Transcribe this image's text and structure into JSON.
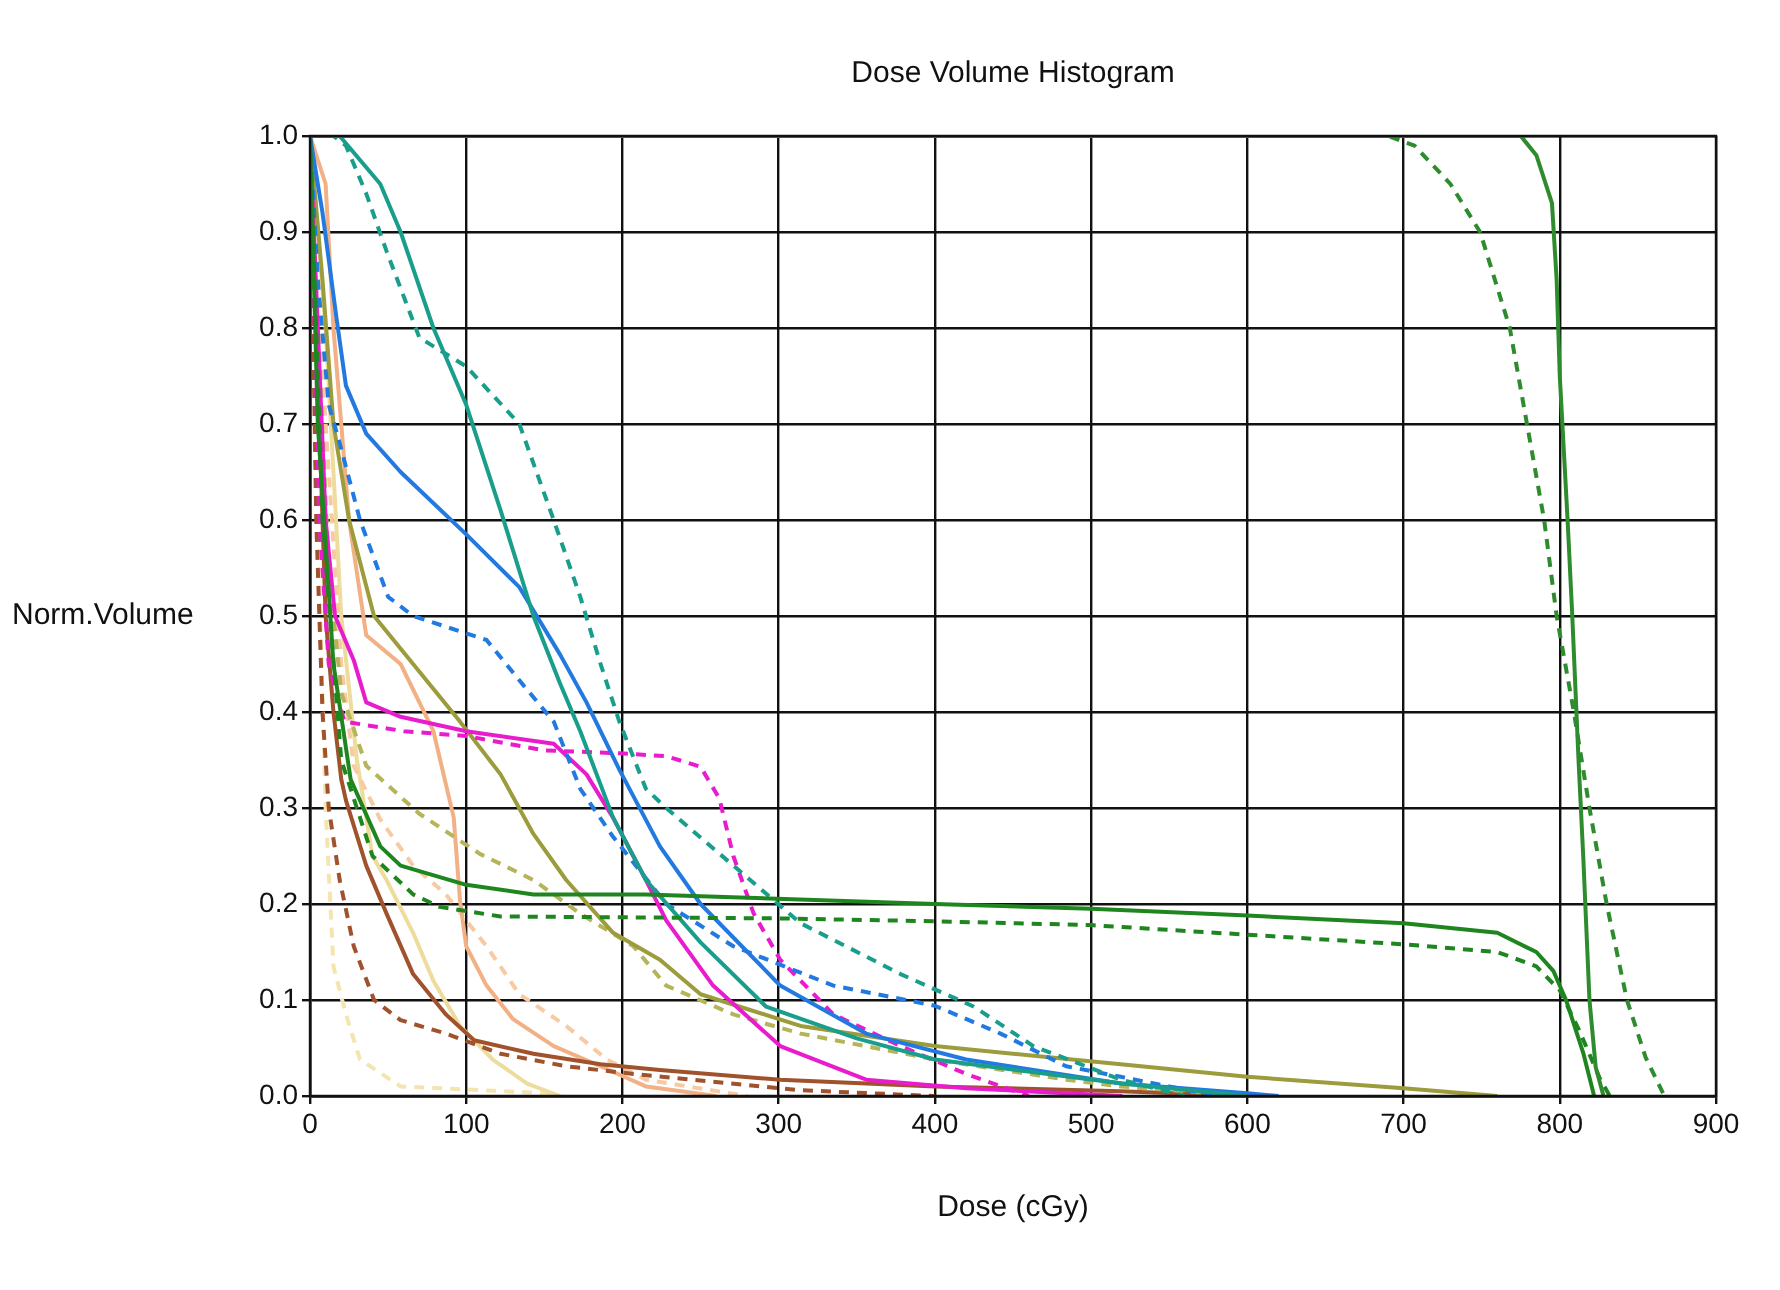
{
  "chart_data": {
    "type": "line",
    "title": "Dose Volume Histogram",
    "xlabel": "Dose (cGy)",
    "ylabel": "Norm.Volume",
    "xlim": [
      0,
      900
    ],
    "ylim": [
      0,
      1
    ],
    "xticks": [
      0,
      100,
      200,
      300,
      400,
      500,
      600,
      700,
      800,
      900
    ],
    "yticks": [
      {
        "value": 0,
        "label": "0.0"
      },
      0.1,
      0.2,
      0.3,
      0.4,
      0.5,
      0.6,
      0.7,
      0.8,
      0.9,
      {
        "value": 1,
        "label": "1.0"
      }
    ],
    "grid": true,
    "legend": false,
    "marker": "none",
    "series": [
      {
        "color": "#2e8b2e",
        "line_style": "solid",
        "x": [
          0,
          760,
          775,
          785,
          795,
          798,
          800,
          805,
          808,
          812,
          815,
          819,
          823,
          828
        ],
        "values": [
          1,
          1,
          1,
          0.98,
          0.93,
          0.85,
          0.75,
          0.6,
          0.5,
          0.35,
          0.25,
          0.1,
          0.03,
          0
        ]
      },
      {
        "color": "#2e8b2e",
        "line_style": "dashed",
        "x": [
          0,
          690,
          707,
          730,
          749,
          768,
          779,
          790,
          798,
          809,
          819,
          830,
          843,
          855,
          867
        ],
        "values": [
          1,
          1,
          0.99,
          0.95,
          0.9,
          0.8,
          0.7,
          0.6,
          0.5,
          0.4,
          0.3,
          0.2,
          0.1,
          0.04,
          0
        ]
      },
      {
        "color": "#1f861f",
        "line_style": "solid",
        "x": [
          0,
          5,
          15,
          26,
          45,
          58,
          100,
          143,
          215,
          400,
          500,
          600,
          700,
          760,
          785,
          796,
          804,
          815,
          822
        ],
        "values": [
          1,
          0.7,
          0.45,
          0.33,
          0.26,
          0.24,
          0.22,
          0.21,
          0.21,
          0.2,
          0.195,
          0.188,
          0.18,
          0.17,
          0.15,
          0.13,
          0.1,
          0.045,
          0
        ]
      },
      {
        "color": "#1f861f",
        "line_style": "dashed",
        "x": [
          0,
          8,
          20,
          40,
          66,
          83,
          122,
          300,
          400,
          500,
          600,
          700,
          760,
          785,
          800,
          812,
          826,
          832
        ],
        "values": [
          1,
          0.6,
          0.35,
          0.25,
          0.21,
          0.197,
          0.187,
          0.185,
          0.182,
          0.178,
          0.168,
          0.158,
          0.15,
          0.135,
          0.11,
          0.07,
          0.017,
          0
        ]
      },
      {
        "color": "#1a9e8c",
        "line_style": "solid",
        "x": [
          0,
          19,
          45,
          58,
          79,
          100,
          122,
          143,
          160,
          173,
          194,
          215,
          250,
          292,
          350,
          400,
          520,
          600
        ],
        "values": [
          1,
          1,
          0.95,
          0.9,
          0.8,
          0.72,
          0.61,
          0.5,
          0.43,
          0.38,
          0.29,
          0.225,
          0.16,
          0.093,
          0.06,
          0.038,
          0.013,
          0
        ]
      },
      {
        "color": "#1a9e8c",
        "line_style": "dashed",
        "x": [
          0,
          15,
          23,
          36,
          49,
          70,
          100,
          134,
          156,
          173,
          186,
          198,
          215,
          228,
          271,
          314,
          378,
          425,
          463,
          519,
          560
        ],
        "values": [
          1,
          1,
          0.99,
          0.94,
          0.88,
          0.79,
          0.76,
          0.7,
          0.6,
          0.52,
          0.45,
          0.39,
          0.32,
          0.3,
          0.24,
          0.18,
          0.127,
          0.093,
          0.052,
          0.017,
          0
        ]
      },
      {
        "color": "#2279e0",
        "line_style": "solid",
        "x": [
          0,
          8,
          17,
          23,
          36,
          58,
          100,
          134,
          160,
          177,
          198,
          224,
          250,
          301,
          356,
          420,
          519,
          600,
          620
        ],
        "values": [
          1,
          0.92,
          0.81,
          0.74,
          0.69,
          0.65,
          0.585,
          0.53,
          0.46,
          0.41,
          0.34,
          0.26,
          0.2,
          0.115,
          0.065,
          0.038,
          0.013,
          0.003,
          0
        ]
      },
      {
        "color": "#2279e0",
        "line_style": "dashed",
        "x": [
          0,
          5,
          12,
          19,
          32,
          50,
          66,
          113,
          134,
          156,
          173,
          194,
          228,
          271,
          335,
          400,
          442,
          484,
          519,
          580
        ],
        "values": [
          1,
          0.85,
          0.72,
          0.68,
          0.6,
          0.52,
          0.5,
          0.475,
          0.433,
          0.39,
          0.32,
          0.27,
          0.2,
          0.156,
          0.115,
          0.094,
          0.065,
          0.031,
          0.02,
          0
        ]
      },
      {
        "color": "#e81ccc",
        "line_style": "solid",
        "x": [
          0,
          5,
          10,
          16,
          28,
          36,
          58,
          100,
          156,
          177,
          194,
          215,
          228,
          258,
          301,
          356,
          420,
          520
        ],
        "values": [
          1,
          0.8,
          0.6,
          0.5,
          0.454,
          0.41,
          0.395,
          0.38,
          0.367,
          0.335,
          0.29,
          0.225,
          0.183,
          0.115,
          0.052,
          0.017,
          0.008,
          0
        ]
      },
      {
        "color": "#e81ccc",
        "line_style": "dashed",
        "x": [
          0,
          6,
          12,
          22,
          60,
          100,
          150,
          198,
          228,
          250,
          262,
          271,
          284,
          301,
          335,
          378,
          420,
          460
        ],
        "values": [
          1,
          0.6,
          0.45,
          0.39,
          0.38,
          0.375,
          0.36,
          0.357,
          0.354,
          0.343,
          0.31,
          0.25,
          0.19,
          0.142,
          0.085,
          0.052,
          0.023,
          0
        ]
      },
      {
        "color": "#9c9c3c",
        "line_style": "solid",
        "x": [
          0,
          8,
          15,
          25,
          41,
          66,
          96,
          122,
          143,
          164,
          194,
          224,
          250,
          314,
          400,
          519,
          600,
          700,
          760
        ],
        "values": [
          1,
          0.85,
          0.7,
          0.6,
          0.5,
          0.45,
          0.39,
          0.335,
          0.273,
          0.225,
          0.17,
          0.142,
          0.106,
          0.073,
          0.052,
          0.033,
          0.02,
          0.008,
          0
        ]
      },
      {
        "color": "#b4b45a",
        "line_style": "dashed",
        "x": [
          0,
          5,
          12,
          20,
          36,
          70,
          109,
          143,
          173,
          207,
          228,
          271,
          314,
          400,
          484,
          519,
          600
        ],
        "values": [
          1,
          0.8,
          0.55,
          0.42,
          0.344,
          0.294,
          0.252,
          0.225,
          0.19,
          0.156,
          0.115,
          0.085,
          0.065,
          0.038,
          0.017,
          0.01,
          0
        ]
      },
      {
        "color": "#a0522d",
        "line_style": "solid",
        "x": [
          0,
          5,
          10,
          15,
          20,
          23,
          36,
          49,
          66,
          87,
          105,
          143,
          186,
          224,
          301,
          400,
          519,
          600
        ],
        "values": [
          1,
          0.75,
          0.5,
          0.4,
          0.33,
          0.308,
          0.24,
          0.19,
          0.127,
          0.085,
          0.058,
          0.044,
          0.033,
          0.027,
          0.017,
          0.01,
          0.005,
          0
        ]
      },
      {
        "color": "#a0522d",
        "line_style": "dashed",
        "x": [
          0,
          4,
          8,
          12,
          19,
          28,
          41,
          58,
          87,
          122,
          164,
          207,
          314,
          400
        ],
        "values": [
          1,
          0.6,
          0.4,
          0.3,
          0.225,
          0.156,
          0.1,
          0.079,
          0.065,
          0.044,
          0.031,
          0.023,
          0.006,
          0
        ]
      },
      {
        "color": "#f2b084",
        "line_style": "solid",
        "x": [
          0,
          10,
          15,
          25,
          36,
          58,
          79,
          92,
          96,
          100,
          113,
          130,
          156,
          186,
          215,
          260
        ],
        "values": [
          1,
          0.95,
          0.8,
          0.6,
          0.48,
          0.45,
          0.38,
          0.29,
          0.204,
          0.156,
          0.115,
          0.08,
          0.052,
          0.031,
          0.01,
          0
        ]
      },
      {
        "color": "#f8caa4",
        "line_style": "dashed",
        "x": [
          0,
          10,
          20,
          28,
          45,
          66,
          87,
          113,
          134,
          164,
          190,
          215,
          280
        ],
        "values": [
          1,
          0.7,
          0.45,
          0.344,
          0.288,
          0.24,
          0.21,
          0.156,
          0.106,
          0.073,
          0.038,
          0.017,
          0
        ]
      },
      {
        "color": "#eedc9c",
        "line_style": "solid",
        "x": [
          0,
          10,
          20,
          30,
          40,
          49,
          66,
          79,
          96,
          117,
          139,
          160
        ],
        "values": [
          1,
          0.8,
          0.5,
          0.35,
          0.25,
          0.225,
          0.17,
          0.12,
          0.073,
          0.038,
          0.013,
          0
        ]
      },
      {
        "color": "#f4e4b0",
        "line_style": "dashed",
        "x": [
          0,
          5,
          10,
          15,
          23,
          32,
          58,
          150,
          160
        ],
        "values": [
          1,
          0.6,
          0.3,
          0.135,
          0.085,
          0.038,
          0.01,
          0.003,
          0
        ]
      }
    ]
  }
}
